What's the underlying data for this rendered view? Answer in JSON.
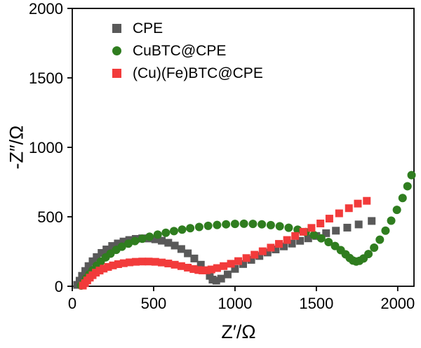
{
  "chart_data": {
    "type": "scatter",
    "title": "",
    "xlabel": "Z′/Ω",
    "ylabel": "-Z″/Ω",
    "xlim": [
      0,
      2100
    ],
    "ylim": [
      0,
      2000
    ],
    "xticks": [
      0,
      500,
      1000,
      1500,
      2000
    ],
    "yticks": [
      0,
      500,
      1000,
      1500,
      2000
    ],
    "grid": false,
    "frame": true,
    "axis_color": "#000000",
    "background": "#ffffff",
    "legend_position": "top-left",
    "series": [
      {
        "name": "CPE",
        "marker": "square",
        "color": "#595959",
        "size": 11,
        "points": [
          [
            30,
            10
          ],
          [
            45,
            40
          ],
          [
            60,
            75
          ],
          [
            80,
            110
          ],
          [
            100,
            145
          ],
          [
            125,
            180
          ],
          [
            150,
            210
          ],
          [
            180,
            240
          ],
          [
            210,
            265
          ],
          [
            245,
            290
          ],
          [
            280,
            308
          ],
          [
            315,
            322
          ],
          [
            350,
            333
          ],
          [
            390,
            341
          ],
          [
            430,
            345
          ],
          [
            470,
            344
          ],
          [
            510,
            338
          ],
          [
            550,
            328
          ],
          [
            590,
            313
          ],
          [
            630,
            293
          ],
          [
            670,
            268
          ],
          [
            710,
            237
          ],
          [
            750,
            200
          ],
          [
            790,
            155
          ],
          [
            820,
            115
          ],
          [
            845,
            75
          ],
          [
            862,
            48
          ],
          [
            885,
            40
          ],
          [
            915,
            55
          ],
          [
            955,
            85
          ],
          [
            1000,
            125
          ],
          [
            1050,
            160
          ],
          [
            1100,
            190
          ],
          [
            1150,
            218
          ],
          [
            1200,
            243
          ],
          [
            1250,
            265
          ],
          [
            1300,
            287
          ],
          [
            1350,
            307
          ],
          [
            1400,
            327
          ],
          [
            1450,
            345
          ],
          [
            1500,
            362
          ],
          [
            1560,
            382
          ],
          [
            1620,
            400
          ],
          [
            1690,
            422
          ],
          [
            1760,
            445
          ],
          [
            1840,
            470
          ]
        ]
      },
      {
        "name": "CuBTC@CPE",
        "marker": "circle",
        "color": "#2f7d1f",
        "size": 12,
        "points": [
          [
            55,
            5
          ],
          [
            70,
            28
          ],
          [
            85,
            55
          ],
          [
            105,
            85
          ],
          [
            125,
            115
          ],
          [
            150,
            148
          ],
          [
            175,
            178
          ],
          [
            205,
            208
          ],
          [
            235,
            235
          ],
          [
            270,
            262
          ],
          [
            305,
            285
          ],
          [
            345,
            307
          ],
          [
            385,
            325
          ],
          [
            430,
            342
          ],
          [
            475,
            357
          ],
          [
            525,
            372
          ],
          [
            575,
            385
          ],
          [
            625,
            397
          ],
          [
            675,
            408
          ],
          [
            725,
            418
          ],
          [
            780,
            427
          ],
          [
            835,
            435
          ],
          [
            890,
            441
          ],
          [
            945,
            446
          ],
          [
            1000,
            449
          ],
          [
            1055,
            450
          ],
          [
            1110,
            449
          ],
          [
            1165,
            446
          ],
          [
            1220,
            440
          ],
          [
            1275,
            432
          ],
          [
            1330,
            421
          ],
          [
            1385,
            407
          ],
          [
            1435,
            390
          ],
          [
            1485,
            369
          ],
          [
            1530,
            345
          ],
          [
            1575,
            318
          ],
          [
            1615,
            290
          ],
          [
            1650,
            260
          ],
          [
            1680,
            230
          ],
          [
            1705,
            203
          ],
          [
            1725,
            185
          ],
          [
            1745,
            178
          ],
          [
            1765,
            183
          ],
          [
            1790,
            200
          ],
          [
            1820,
            232
          ],
          [
            1855,
            278
          ],
          [
            1890,
            335
          ],
          [
            1925,
            400
          ],
          [
            1960,
            472
          ],
          [
            1995,
            550
          ],
          [
            2030,
            635
          ],
          [
            2060,
            720
          ],
          [
            2085,
            800
          ]
        ]
      },
      {
        "name": "(Cu)(Fe)BTC@CPE",
        "marker": "square",
        "color": "#f23b3b",
        "size": 11,
        "points": [
          [
            65,
            5
          ],
          [
            78,
            22
          ],
          [
            92,
            42
          ],
          [
            108,
            62
          ],
          [
            125,
            80
          ],
          [
            145,
            98
          ],
          [
            168,
            113
          ],
          [
            193,
            127
          ],
          [
            220,
            139
          ],
          [
            250,
            150
          ],
          [
            282,
            159
          ],
          [
            316,
            166
          ],
          [
            352,
            172
          ],
          [
            390,
            176
          ],
          [
            430,
            178
          ],
          [
            470,
            178
          ],
          [
            510,
            176
          ],
          [
            550,
            171
          ],
          [
            590,
            164
          ],
          [
            630,
            155
          ],
          [
            670,
            145
          ],
          [
            710,
            134
          ],
          [
            745,
            124
          ],
          [
            775,
            117
          ],
          [
            800,
            114
          ],
          [
            825,
            115
          ],
          [
            855,
            121
          ],
          [
            890,
            131
          ],
          [
            930,
            145
          ],
          [
            975,
            162
          ],
          [
            1020,
            181
          ],
          [
            1070,
            203
          ],
          [
            1120,
            227
          ],
          [
            1170,
            252
          ],
          [
            1220,
            278
          ],
          [
            1270,
            305
          ],
          [
            1320,
            333
          ],
          [
            1370,
            362
          ],
          [
            1420,
            392
          ],
          [
            1470,
            420
          ],
          [
            1525,
            452
          ],
          [
            1580,
            487
          ],
          [
            1640,
            525
          ],
          [
            1700,
            562
          ],
          [
            1755,
            595
          ],
          [
            1810,
            615
          ]
        ]
      }
    ]
  }
}
